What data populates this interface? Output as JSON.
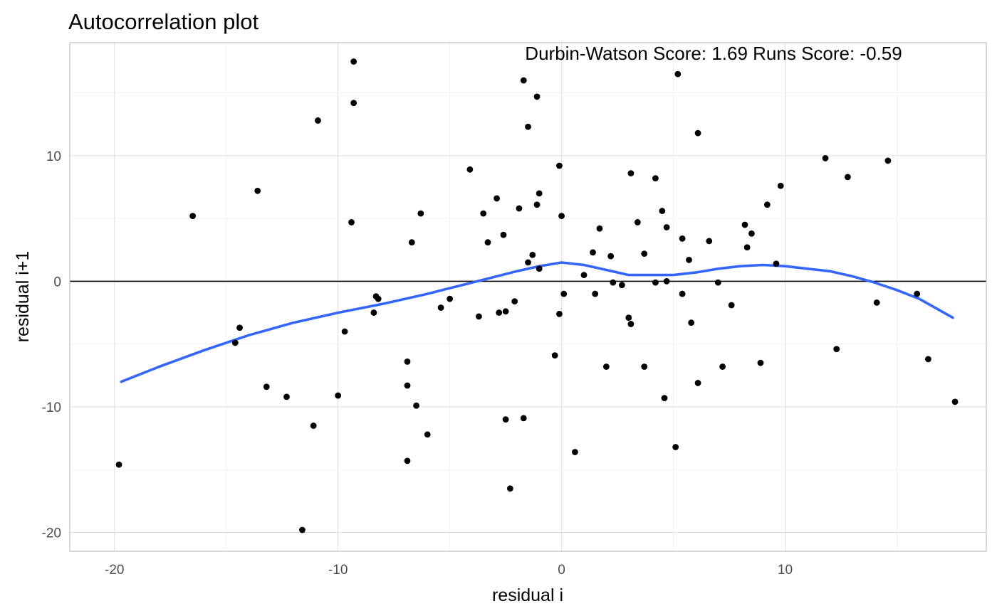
{
  "chart_data": {
    "type": "scatter",
    "title": "Autocorrelation plot",
    "annotation": "Durbin-Watson Score: 1.69  Runs Score: -0.59",
    "xlabel": "residual i",
    "ylabel": "residual i+1",
    "xlim": [
      -22,
      19
    ],
    "ylim": [
      -21.5,
      19
    ],
    "x_ticks": [
      -20,
      -10,
      0,
      10
    ],
    "y_ticks": [
      -20,
      -10,
      0,
      10
    ],
    "x_tick_labels": [
      "-20",
      "-10",
      "0",
      "10"
    ],
    "y_tick_labels": [
      "-20",
      "-10",
      "0",
      "10"
    ],
    "grid": true,
    "reference_line": {
      "y": 0,
      "color": "#000000"
    },
    "point_color": "#000000",
    "smooth_color": "#3366ff",
    "points": [
      [
        -19.8,
        -14.6
      ],
      [
        -16.5,
        5.2
      ],
      [
        -14.6,
        -4.9
      ],
      [
        -14.4,
        -3.7
      ],
      [
        -13.6,
        7.2
      ],
      [
        -13.2,
        -8.4
      ],
      [
        -12.3,
        -9.2
      ],
      [
        -11.6,
        -19.8
      ],
      [
        -11.1,
        -11.5
      ],
      [
        -10.9,
        12.8
      ],
      [
        -10.0,
        -9.1
      ],
      [
        -9.7,
        -4.0
      ],
      [
        -9.4,
        4.7
      ],
      [
        -9.3,
        14.2
      ],
      [
        -9.3,
        17.5
      ],
      [
        -8.3,
        -1.2
      ],
      [
        -8.2,
        -1.4
      ],
      [
        -8.4,
        -2.5
      ],
      [
        -6.9,
        -6.4
      ],
      [
        -6.9,
        -8.3
      ],
      [
        -6.9,
        -14.3
      ],
      [
        -6.7,
        3.1
      ],
      [
        -6.5,
        -9.9
      ],
      [
        -6.3,
        5.4
      ],
      [
        -6.0,
        -12.2
      ],
      [
        -5.4,
        -2.1
      ],
      [
        -5.0,
        -1.4
      ],
      [
        -4.1,
        8.9
      ],
      [
        -3.7,
        -2.8
      ],
      [
        -3.5,
        5.4
      ],
      [
        -3.3,
        3.1
      ],
      [
        -2.9,
        6.6
      ],
      [
        -2.8,
        -2.5
      ],
      [
        -2.6,
        3.7
      ],
      [
        -2.5,
        -2.4
      ],
      [
        -2.5,
        -11.0
      ],
      [
        -2.3,
        -16.5
      ],
      [
        -2.1,
        -1.6
      ],
      [
        -1.9,
        5.8
      ],
      [
        -1.7,
        16.0
      ],
      [
        -1.7,
        -10.9
      ],
      [
        -1.5,
        12.3
      ],
      [
        -1.5,
        1.5
      ],
      [
        -1.3,
        2.1
      ],
      [
        -1.1,
        14.7
      ],
      [
        -1.1,
        6.1
      ],
      [
        -1.0,
        7.0
      ],
      [
        -1.0,
        1.0
      ],
      [
        -0.3,
        -5.9
      ],
      [
        -0.1,
        9.2
      ],
      [
        -0.1,
        -2.6
      ],
      [
        0.0,
        5.2
      ],
      [
        0.1,
        -1.0
      ],
      [
        0.6,
        -13.6
      ],
      [
        1.0,
        0.5
      ],
      [
        1.4,
        2.3
      ],
      [
        1.5,
        -1.0
      ],
      [
        1.7,
        4.2
      ],
      [
        2.0,
        -6.8
      ],
      [
        2.2,
        2.0
      ],
      [
        2.3,
        -0.1
      ],
      [
        2.7,
        -0.3
      ],
      [
        3.0,
        -2.9
      ],
      [
        3.1,
        8.6
      ],
      [
        3.1,
        -3.4
      ],
      [
        3.4,
        4.7
      ],
      [
        3.7,
        2.2
      ],
      [
        3.7,
        -6.8
      ],
      [
        4.2,
        -0.1
      ],
      [
        4.2,
        8.2
      ],
      [
        4.5,
        5.6
      ],
      [
        4.6,
        -9.3
      ],
      [
        4.7,
        4.3
      ],
      [
        4.7,
        0.0
      ],
      [
        5.2,
        16.5
      ],
      [
        5.1,
        -13.2
      ],
      [
        5.4,
        3.4
      ],
      [
        5.4,
        -1.0
      ],
      [
        5.7,
        1.7
      ],
      [
        5.8,
        -3.3
      ],
      [
        6.1,
        11.8
      ],
      [
        6.1,
        -8.1
      ],
      [
        6.6,
        3.2
      ],
      [
        7.0,
        -0.1
      ],
      [
        7.2,
        -6.8
      ],
      [
        7.6,
        -1.9
      ],
      [
        8.2,
        4.5
      ],
      [
        8.3,
        2.7
      ],
      [
        8.5,
        3.8
      ],
      [
        8.9,
        -6.5
      ],
      [
        9.2,
        6.1
      ],
      [
        9.6,
        1.4
      ],
      [
        9.8,
        7.6
      ],
      [
        11.8,
        9.8
      ],
      [
        12.3,
        -5.4
      ],
      [
        12.8,
        8.3
      ],
      [
        14.1,
        -1.7
      ],
      [
        14.6,
        9.6
      ],
      [
        15.9,
        -1.0
      ],
      [
        16.4,
        -6.2
      ],
      [
        17.6,
        -9.6
      ]
    ],
    "smooth": [
      [
        -19.7,
        -8.0
      ],
      [
        -18.0,
        -6.8
      ],
      [
        -16.0,
        -5.5
      ],
      [
        -14.0,
        -4.3
      ],
      [
        -12.0,
        -3.3
      ],
      [
        -10.0,
        -2.5
      ],
      [
        -8.0,
        -1.8
      ],
      [
        -6.0,
        -1.0
      ],
      [
        -4.0,
        -0.1
      ],
      [
        -2.0,
        0.8
      ],
      [
        -1.0,
        1.2
      ],
      [
        0.0,
        1.5
      ],
      [
        1.0,
        1.3
      ],
      [
        2.0,
        0.9
      ],
      [
        3.0,
        0.5
      ],
      [
        4.0,
        0.5
      ],
      [
        5.0,
        0.5
      ],
      [
        6.0,
        0.7
      ],
      [
        7.0,
        1.0
      ],
      [
        8.0,
        1.2
      ],
      [
        9.0,
        1.3
      ],
      [
        10.0,
        1.2
      ],
      [
        11.0,
        1.0
      ],
      [
        12.0,
        0.8
      ],
      [
        13.0,
        0.4
      ],
      [
        14.0,
        -0.1
      ],
      [
        15.0,
        -0.7
      ],
      [
        16.0,
        -1.4
      ],
      [
        17.5,
        -2.9
      ]
    ]
  }
}
